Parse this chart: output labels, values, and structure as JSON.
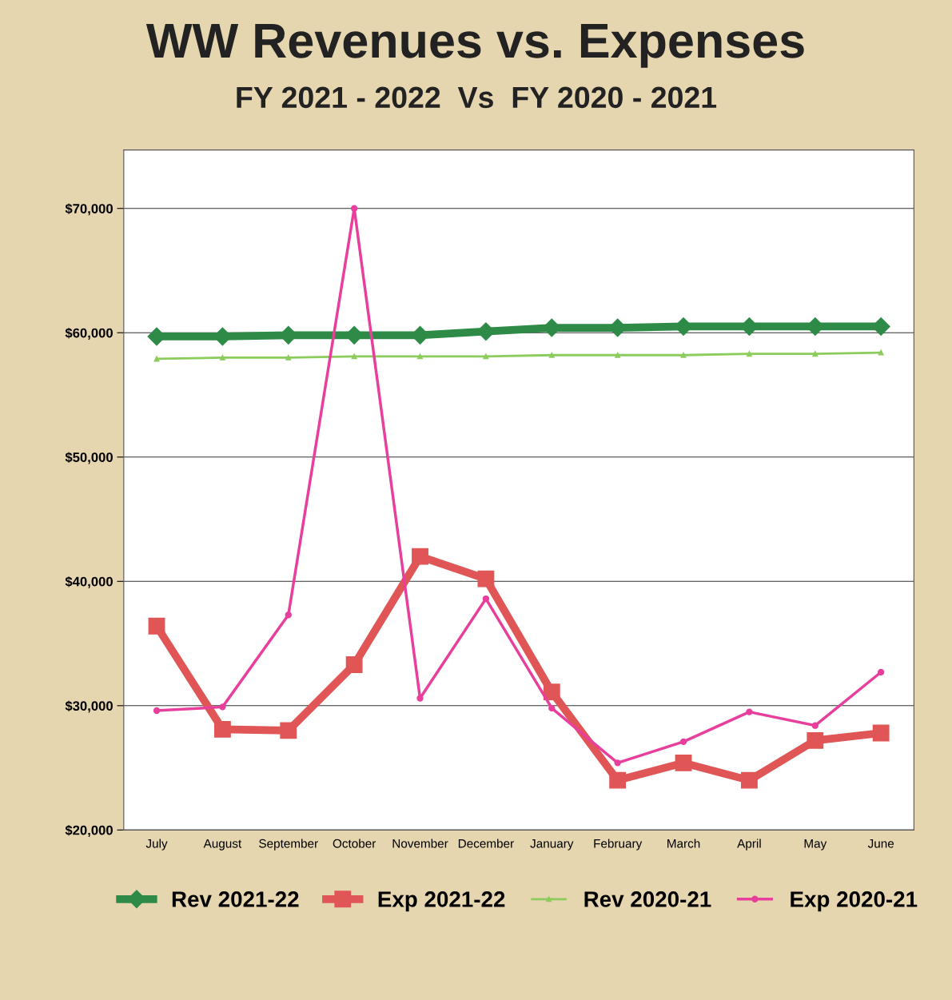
{
  "chart_data": {
    "type": "line",
    "title": "WW Revenues vs. Expenses",
    "subtitle": "FY 2021 - 2022  Vs  FY 2020 - 2021",
    "categories": [
      "July",
      "August",
      "September",
      "October",
      "November",
      "December",
      "January",
      "February",
      "March",
      "April",
      "May",
      "June"
    ],
    "series": [
      {
        "name": "Rev 2021-22",
        "color": "#2e8b47",
        "marker": "diamond",
        "values": [
          59700,
          59700,
          59800,
          59800,
          59800,
          60100,
          60400,
          60400,
          60500,
          60500,
          60500,
          60500
        ]
      },
      {
        "name": "Exp 2021-22",
        "color": "#e05555",
        "marker": "square",
        "values": [
          36400,
          28100,
          28000,
          33300,
          42000,
          40200,
          31100,
          24000,
          25400,
          24000,
          27200,
          27800
        ]
      },
      {
        "name": "Rev 2020-21",
        "color": "#8ccc5c",
        "marker": "triangle",
        "values": [
          57900,
          58000,
          58000,
          58100,
          58100,
          58100,
          58200,
          58200,
          58200,
          58300,
          58300,
          58400
        ]
      },
      {
        "name": "Exp 2020-21",
        "color": "#e83e9c",
        "marker": "circle",
        "values": [
          29600,
          29900,
          37300,
          70000,
          30600,
          38600,
          29800,
          25400,
          27100,
          29500,
          28400,
          32700
        ]
      }
    ],
    "ylim": [
      20000,
      74700
    ],
    "yticks": [
      {
        "value": 20000,
        "label": "$20,000"
      },
      {
        "value": 30000,
        "label": "$30,000"
      },
      {
        "value": 40000,
        "label": "$40,000"
      },
      {
        "value": 50000,
        "label": "$50,000"
      },
      {
        "value": 60000,
        "label": "$60,000"
      },
      {
        "value": 70000,
        "label": "$70,000"
      }
    ],
    "grid": "y",
    "legend": "bottom"
  }
}
